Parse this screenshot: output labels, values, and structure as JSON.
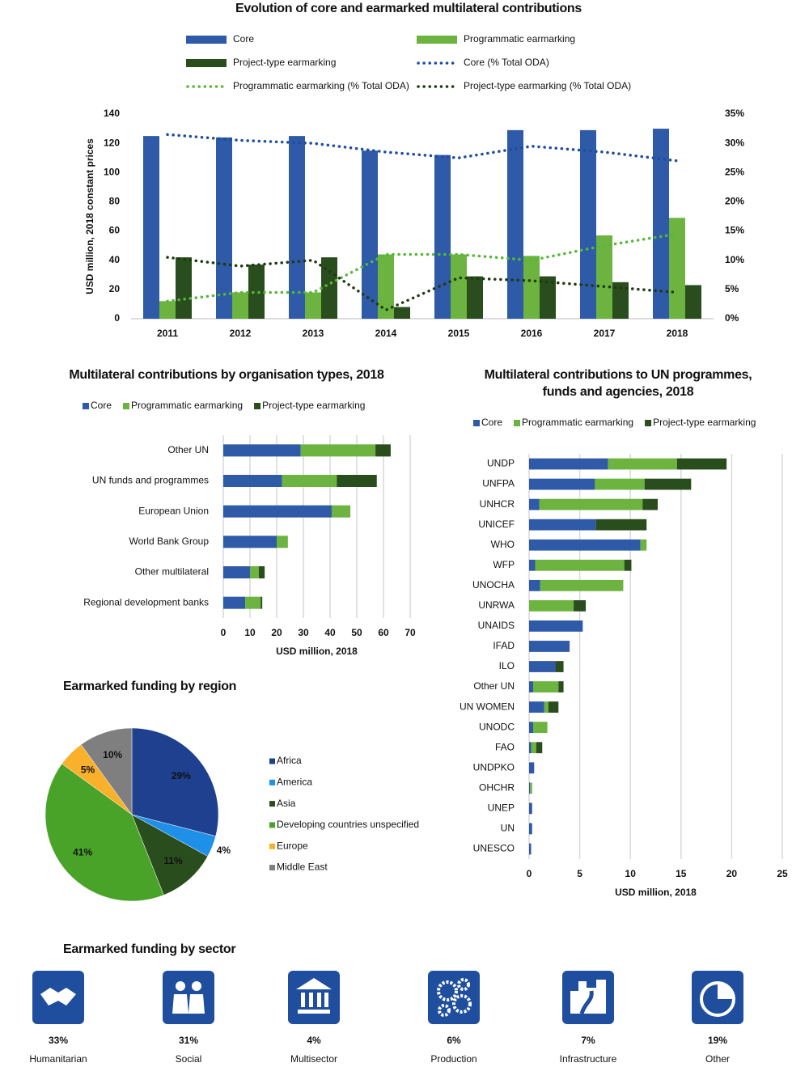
{
  "chart_data": [
    {
      "type": "bar",
      "title": "Evolution of core and earmarked multilateral contributions",
      "y_label": "USD million, 2018 constant prices",
      "categories": [
        "2011",
        "2012",
        "2013",
        "2014",
        "2015",
        "2016",
        "2017",
        "2018"
      ],
      "ylim": [
        0,
        140
      ],
      "yticks": [
        0,
        20,
        40,
        60,
        80,
        100,
        120,
        140
      ],
      "y2lim": [
        0,
        35
      ],
      "y2ticks": [
        {
          "value": 0,
          "label": "0%"
        },
        {
          "value": 5,
          "label": "5%"
        },
        {
          "value": 10,
          "label": "10%"
        },
        {
          "value": 15,
          "label": "15%"
        },
        {
          "value": 20,
          "label": "20%"
        },
        {
          "value": 25,
          "label": "25%"
        },
        {
          "value": 30,
          "label": "30%"
        },
        {
          "value": 35,
          "label": "35%"
        }
      ],
      "series": [
        {
          "name": "Core",
          "type": "bar",
          "color": "#2e5aa8",
          "values": [
            125,
            124,
            125,
            115,
            112,
            129,
            129,
            130
          ]
        },
        {
          "name": "Programmatic earmarking",
          "type": "bar",
          "color": "#6cb33f",
          "values": [
            12,
            18,
            18,
            44,
            44,
            43,
            57,
            69
          ]
        },
        {
          "name": "Project-type earmarking",
          "type": "bar",
          "color": "#2a4d1e",
          "values": [
            42,
            37,
            42,
            8,
            29,
            29,
            25,
            23
          ]
        },
        {
          "name": "Core (% Total ODA)",
          "type": "line",
          "axis": "y2",
          "color": "#1f4e9e",
          "values": [
            31.5,
            30.5,
            30,
            28.5,
            27.5,
            29.5,
            28.5,
            27
          ]
        },
        {
          "name": "Programmatic earmarking (% Total ODA)",
          "type": "line",
          "axis": "y2",
          "color": "#56b83a",
          "values": [
            3,
            4.5,
            4.5,
            11,
            11,
            10,
            12.5,
            14.5
          ]
        },
        {
          "name": "Project-type earmarking (% Total ODA)",
          "type": "line",
          "axis": "y2",
          "color": "#1e3a12",
          "values": [
            10.5,
            9,
            10,
            1.5,
            7,
            6.5,
            5.5,
            4.5
          ]
        }
      ]
    },
    {
      "type": "barh",
      "stacked": true,
      "title": "Multilateral contributions by organisation types, 2018",
      "x_label": "USD million, 2018",
      "categories": [
        "Other UN",
        "UN funds and programmes",
        "European Union",
        "World Bank Group",
        "Other multilateral",
        "Regional development banks"
      ],
      "xlim": [
        0,
        70
      ],
      "xticks": [
        0,
        10,
        20,
        30,
        40,
        50,
        60,
        70
      ],
      "grid": true,
      "series": [
        {
          "name": "Core",
          "color": "#2e5aa8",
          "values": [
            29,
            22,
            40.6,
            20,
            10,
            8.2
          ]
        },
        {
          "name": "Programmatic earmarking",
          "color": "#6cb33f",
          "values": [
            28,
            20.5,
            7,
            4.2,
            3.3,
            5.8
          ]
        },
        {
          "name": "Project-type earmarking",
          "color": "#2a4d1e",
          "values": [
            5.7,
            15,
            0,
            0,
            2.2,
            0.6
          ]
        }
      ]
    },
    {
      "type": "barh",
      "stacked": true,
      "title": "Multilateral contributions to UN programmes, funds and agencies, 2018",
      "x_label": "USD million, 2018",
      "categories": [
        "UNDP",
        "UNFPA",
        "UNHCR",
        "UNICEF",
        "WHO",
        "WFP",
        "UNOCHA",
        "UNRWA",
        "UNAIDS",
        "IFAD",
        "ILO",
        "Other UN",
        "UN WOMEN",
        "UNODC",
        "FAO",
        "UNDPKO",
        "OHCHR",
        "UNEP",
        "UN",
        "UNESCO"
      ],
      "xlim": [
        0,
        25
      ],
      "xticks": [
        0,
        5,
        10,
        15,
        20,
        25
      ],
      "grid": true,
      "series": [
        {
          "name": "Core",
          "color": "#2e5aa8",
          "values": [
            7.8,
            6.5,
            1.0,
            6.6,
            11.0,
            0.6,
            1.1,
            0,
            5.3,
            4.0,
            2.6,
            0.4,
            1.5,
            0.4,
            0.2,
            0.5,
            0.1,
            0.3,
            0.3,
            0.2
          ]
        },
        {
          "name": "Programmatic earmarking",
          "color": "#6cb33f",
          "values": [
            6.8,
            4.9,
            10.2,
            0,
            0.6,
            8.8,
            8.2,
            4.4,
            0,
            0,
            0,
            2.5,
            0.4,
            1.4,
            0.5,
            0,
            0.2,
            0,
            0,
            0
          ]
        },
        {
          "name": "Project-type earmarking",
          "color": "#2a4d1e",
          "values": [
            4.9,
            4.6,
            1.5,
            5.0,
            0,
            0.7,
            0,
            1.2,
            0,
            0,
            0.8,
            0.5,
            1.0,
            0,
            0.6,
            0,
            0,
            0,
            0,
            0
          ]
        }
      ]
    },
    {
      "type": "pie",
      "title": "Earmarked funding by region",
      "categories": [
        "Africa",
        "America",
        "Asia",
        "Developing countries unspecified",
        "Europe",
        "Middle East"
      ],
      "values": [
        29,
        4,
        11,
        41,
        5,
        10
      ],
      "value_labels": [
        "29%",
        "4%",
        "11%",
        "41%",
        "5%",
        "10%"
      ],
      "colors": [
        "#1f3f8f",
        "#1e90e8",
        "#2a4d1e",
        "#4aa329",
        "#f9b12b",
        "#7f7f7f"
      ]
    }
  ],
  "sectors": {
    "title": "Earmarked funding by sector",
    "items": [
      {
        "share": "33%",
        "label": "Humanitarian"
      },
      {
        "share": "31%",
        "label": "Social"
      },
      {
        "share": "4%",
        "label": "Multisector"
      },
      {
        "share": "6%",
        "label": "Production"
      },
      {
        "share": "7%",
        "label": "Infrastructure"
      },
      {
        "share": "19%",
        "label": "Other"
      }
    ]
  }
}
